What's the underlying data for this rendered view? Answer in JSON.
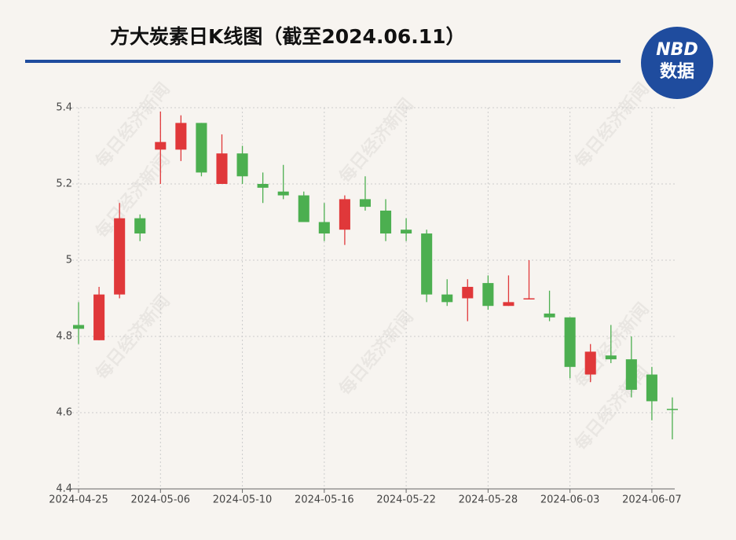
{
  "chart_data": {
    "type": "candlestick",
    "title": "方大炭素日K线图（截至2024.06.11）",
    "logo": {
      "top": "NBD",
      "bottom": "数据"
    },
    "watermark": "每日经济新闻",
    "categories": [
      "2024-04-25",
      null,
      null,
      null,
      "2024-05-06",
      null,
      null,
      null,
      "2024-05-10",
      null,
      null,
      null,
      "2024-05-16",
      null,
      null,
      null,
      "2024-05-22",
      null,
      null,
      null,
      "2024-05-28",
      null,
      null,
      null,
      "2024-06-03",
      null,
      null,
      null,
      "2024-06-07",
      null
    ],
    "open": [
      4.83,
      4.79,
      4.91,
      5.11,
      5.29,
      5.29,
      5.36,
      5.2,
      5.28,
      5.2,
      5.18,
      5.17,
      5.1,
      5.08,
      5.16,
      5.13,
      5.08,
      5.07,
      4.91,
      4.9,
      4.94,
      4.88,
      4.9,
      4.86,
      4.85,
      4.7,
      4.75,
      4.74,
      4.7,
      4.61
    ],
    "high": [
      4.89,
      4.93,
      5.15,
      5.12,
      5.39,
      5.38,
      5.36,
      5.33,
      5.3,
      5.23,
      5.25,
      5.18,
      5.15,
      5.17,
      5.22,
      5.16,
      5.11,
      5.08,
      4.95,
      4.95,
      4.96,
      4.96,
      5.0,
      4.92,
      4.85,
      4.78,
      4.83,
      4.8,
      4.72,
      4.64
    ],
    "low": [
      4.78,
      4.79,
      4.9,
      5.05,
      5.2,
      5.26,
      5.22,
      5.2,
      5.2,
      5.15,
      5.16,
      5.1,
      5.05,
      5.04,
      5.13,
      5.05,
      5.05,
      4.89,
      4.88,
      4.84,
      4.87,
      4.88,
      4.9,
      4.84,
      4.69,
      4.68,
      4.73,
      4.64,
      4.58,
      4.53
    ],
    "close": [
      4.82,
      4.91,
      5.11,
      5.07,
      5.31,
      5.36,
      5.23,
      5.28,
      5.22,
      5.19,
      5.17,
      5.1,
      5.07,
      5.16,
      5.14,
      5.07,
      5.07,
      4.91,
      4.89,
      4.93,
      4.88,
      4.89,
      4.9,
      4.85,
      4.72,
      4.76,
      4.74,
      4.66,
      4.63,
      4.61
    ],
    "up_color": "#e0383a",
    "down_color": "#4caf50",
    "ylim": [
      4.4,
      5.4
    ],
    "yticks": [
      4.4,
      4.6,
      4.8,
      5,
      5.2,
      5.4
    ],
    "grid": true
  }
}
